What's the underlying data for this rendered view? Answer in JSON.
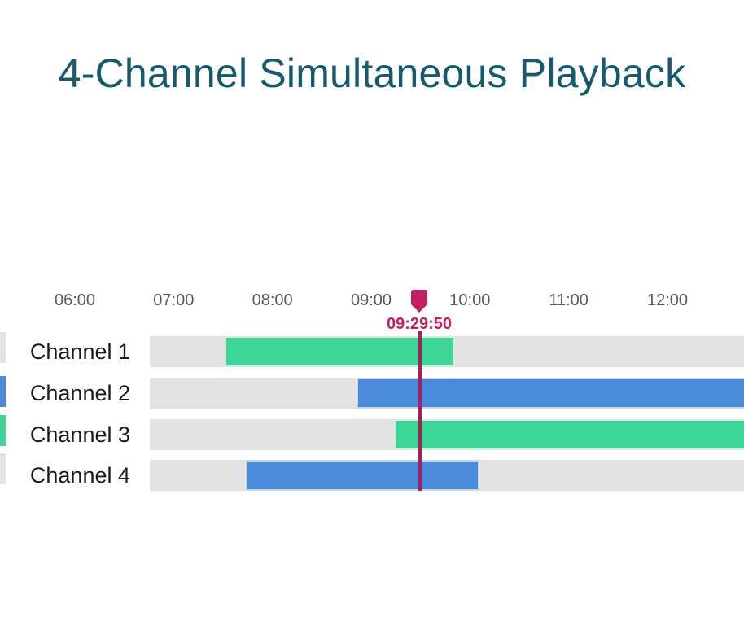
{
  "title": "4-Channel Simultaneous Playback",
  "colors": {
    "title": "#185a6d",
    "tick_label": "#595959",
    "channel_label": "#1b1b1b",
    "track": "#e3e3e3",
    "green": "#3ed598",
    "blue": "#4b8bdc",
    "playhead": "#c02063",
    "playhead_line": "#a81d5a"
  },
  "chart_data": {
    "type": "bar",
    "variant": "timeline-gantt",
    "title": "4-Channel Simultaneous Playback",
    "x_tick_labels": [
      "06:00",
      "07:00",
      "08:00",
      "09:00",
      "10:00",
      "11:00",
      "12:00"
    ],
    "x_axis_range_visible": [
      "05:15",
      "12:46"
    ],
    "categories": [
      "Channel 1",
      "Channel 2",
      "Channel 3",
      "Channel 4"
    ],
    "playhead_time": "09:29:50",
    "series": [
      {
        "channel": "Channel 1",
        "start": "07:32",
        "end": "09:50",
        "color": "green",
        "clipped_right": false
      },
      {
        "channel": "Channel 2",
        "start": "08:52",
        "end": null,
        "color": "blue",
        "clipped_right": true
      },
      {
        "channel": "Channel 3",
        "start": "09:15",
        "end": null,
        "color": "green",
        "clipped_right": true
      },
      {
        "channel": "Channel 4",
        "start": "07:45",
        "end": "10:05",
        "color": "blue",
        "clipped_right": false
      }
    ],
    "left_edge_fragments": [
      "track",
      "blue",
      "green",
      "track"
    ],
    "legend": null,
    "grid": false
  }
}
